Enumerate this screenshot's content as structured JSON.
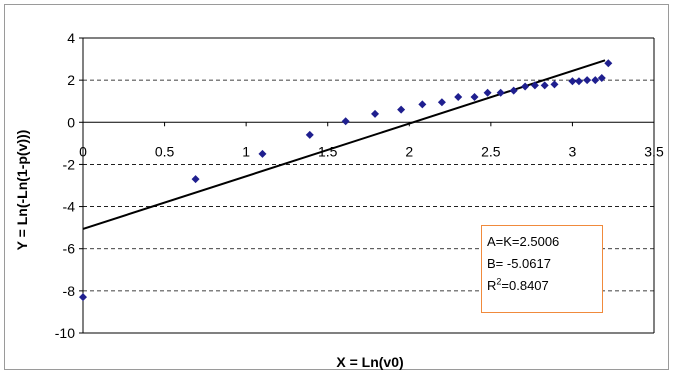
{
  "chart_data": {
    "type": "scatter",
    "xlabel": "X = Ln(v0)",
    "ylabel": "Y = Ln(-Ln(1-p(v)))",
    "xlim": [
      0,
      3.5
    ],
    "ylim": [
      -10,
      4
    ],
    "x_ticks": [
      "0",
      "0.5",
      "1",
      "1.5",
      "2",
      "2.5",
      "3",
      "3.5"
    ],
    "y_ticks": [
      "4",
      "2",
      "0",
      "-2",
      "-4",
      "-6",
      "-8",
      "-10"
    ],
    "grid": "horizontal dashed",
    "marker_color": "#1f1f8f",
    "points": [
      {
        "x": 0.0,
        "y": -8.3
      },
      {
        "x": 0.69,
        "y": -2.7
      },
      {
        "x": 1.1,
        "y": -1.5
      },
      {
        "x": 1.39,
        "y": -0.6
      },
      {
        "x": 1.61,
        "y": 0.05
      },
      {
        "x": 1.79,
        "y": 0.4
      },
      {
        "x": 1.95,
        "y": 0.6
      },
      {
        "x": 2.08,
        "y": 0.85
      },
      {
        "x": 2.2,
        "y": 0.95
      },
      {
        "x": 2.3,
        "y": 1.2
      },
      {
        "x": 2.4,
        "y": 1.2
      },
      {
        "x": 2.48,
        "y": 1.4
      },
      {
        "x": 2.56,
        "y": 1.4
      },
      {
        "x": 2.64,
        "y": 1.5
      },
      {
        "x": 2.71,
        "y": 1.7
      },
      {
        "x": 2.77,
        "y": 1.75
      },
      {
        "x": 2.83,
        "y": 1.75
      },
      {
        "x": 2.89,
        "y": 1.8
      },
      {
        "x": 3.0,
        "y": 1.95
      },
      {
        "x": 3.04,
        "y": 1.95
      },
      {
        "x": 3.09,
        "y": 2.0
      },
      {
        "x": 3.14,
        "y": 2.0
      },
      {
        "x": 3.18,
        "y": 2.1
      },
      {
        "x": 3.22,
        "y": 2.8
      }
    ],
    "trendline": {
      "slope": 2.5006,
      "intercept": -5.0617,
      "x_range": [
        0,
        3.2
      ]
    },
    "annotation": {
      "line1": "A=K=2.5006",
      "line2": "B= -5.0617",
      "r2_prefix": "R",
      "r2_sup": "2",
      "r2_value": "=0.8407"
    },
    "annotation_border_color": "#f08a3c"
  }
}
